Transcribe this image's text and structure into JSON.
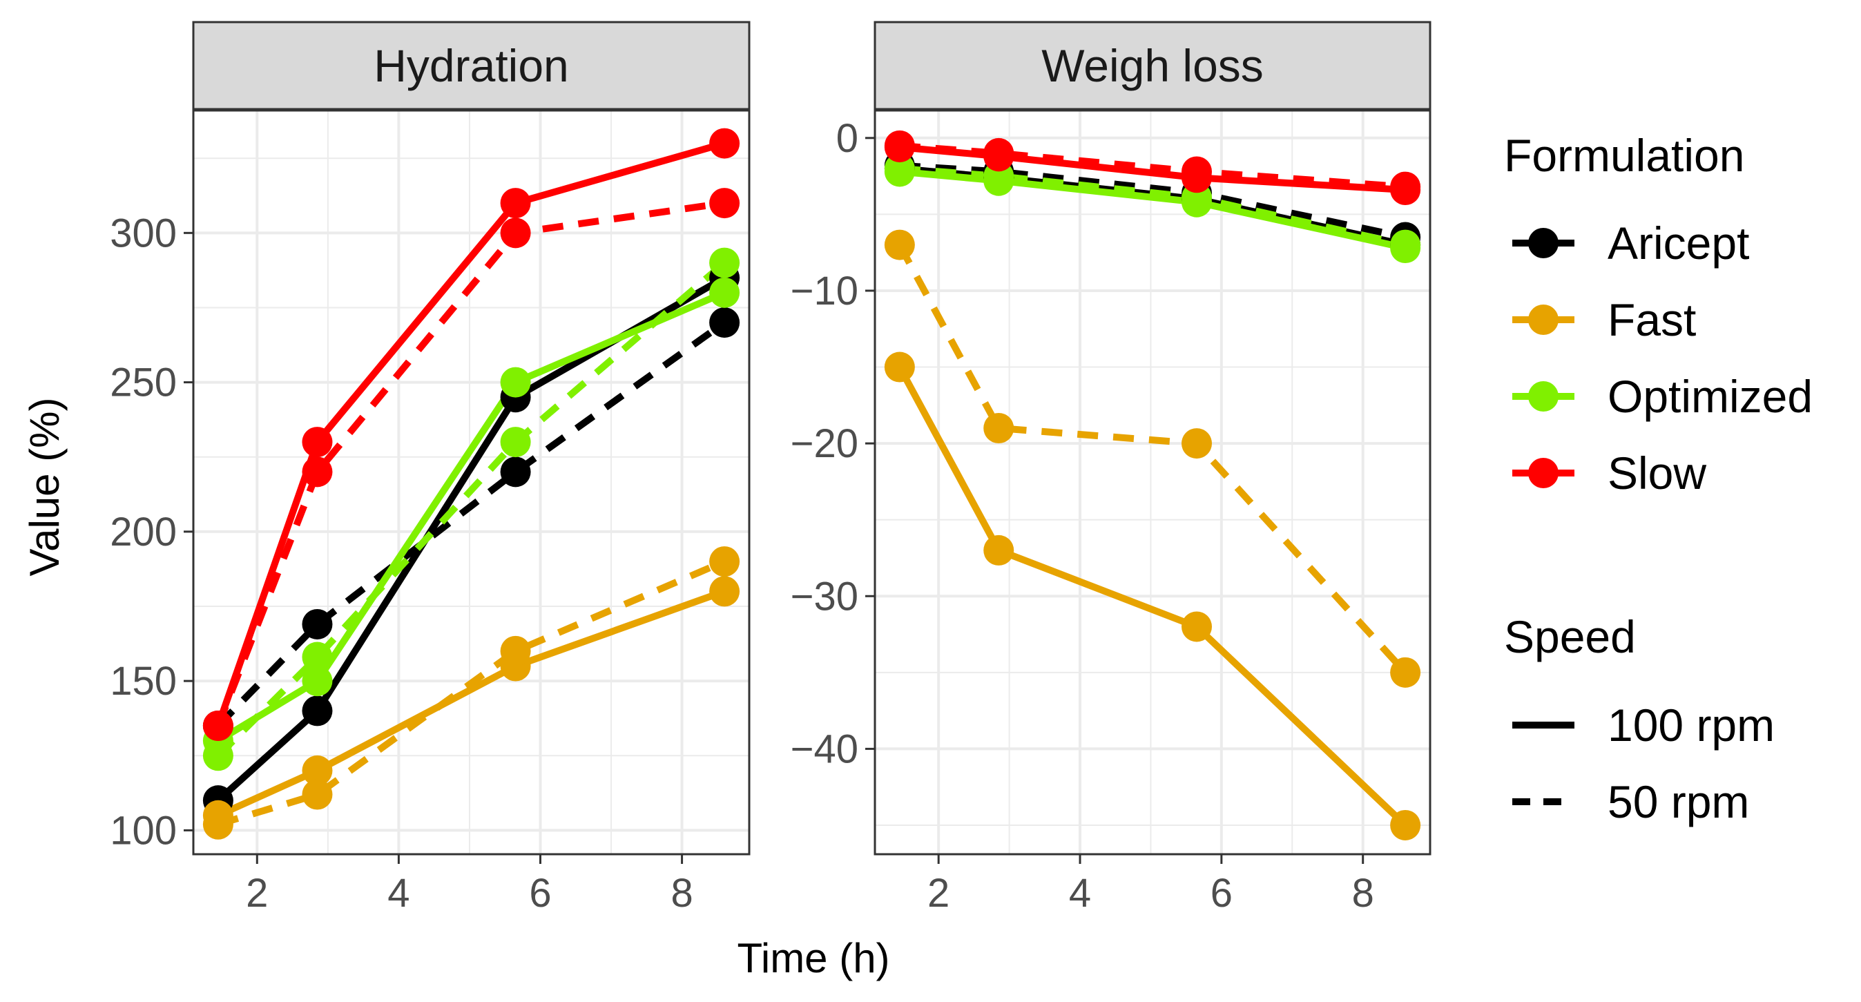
{
  "chart_data": {
    "type": "line",
    "xlabel": "Time (h)",
    "ylabel": "Value (%)",
    "x": [
      1.45,
      2.85,
      5.65,
      8.6
    ],
    "xlim": [
      1.1,
      8.95
    ],
    "xticks": [
      2,
      4,
      6,
      8
    ],
    "colors": {
      "Aricept": "#000000",
      "Fast": "#E7A300",
      "Optimized": "#80F000",
      "Slow": "#FF0000",
      "strip_bg": "#D9D9D9",
      "grid": "#EBEBEB"
    },
    "panels": [
      {
        "title": "Hydration",
        "ylim": [
          92,
          341
        ],
        "yticks": [
          100,
          150,
          200,
          250,
          300
        ],
        "series": [
          {
            "formulation": "Aricept",
            "speed": "100 rpm",
            "values": [
              110,
              140,
              245,
              285
            ]
          },
          {
            "formulation": "Aricept",
            "speed": "50 rpm",
            "values": [
              135,
              169,
              220,
              270
            ]
          },
          {
            "formulation": "Fast",
            "speed": "100 rpm",
            "values": [
              105,
              120,
              155,
              180
            ]
          },
          {
            "formulation": "Fast",
            "speed": "50 rpm",
            "values": [
              102,
              112,
              160,
              190
            ]
          },
          {
            "formulation": "Optimized",
            "speed": "100 rpm",
            "values": [
              130,
              150,
              250,
              280
            ]
          },
          {
            "formulation": "Optimized",
            "speed": "50 rpm",
            "values": [
              125,
              158,
              230,
              290
            ]
          },
          {
            "formulation": "Slow",
            "speed": "100 rpm",
            "values": [
              135,
              230,
              310,
              330
            ]
          },
          {
            "formulation": "Slow",
            "speed": "50 rpm",
            "values": [
              135,
              220,
              300,
              310
            ]
          }
        ]
      },
      {
        "title": "Weigh loss",
        "ylim": [
          -46.9,
          1.8
        ],
        "yticks": [
          0,
          -10,
          -20,
          -30,
          -40
        ],
        "series": [
          {
            "formulation": "Aricept",
            "speed": "100 rpm",
            "values": [
              -2,
              -2.6,
              -4,
              -7
            ]
          },
          {
            "formulation": "Aricept",
            "speed": "50 rpm",
            "values": [
              -1.8,
              -2.2,
              -3.6,
              -6.5
            ]
          },
          {
            "formulation": "Fast",
            "speed": "100 rpm",
            "values": [
              -15,
              -27,
              -32,
              -45
            ]
          },
          {
            "formulation": "Fast",
            "speed": "50 rpm",
            "values": [
              -7,
              -19,
              -20,
              -35
            ]
          },
          {
            "formulation": "Optimized",
            "speed": "100 rpm",
            "values": [
              -2.2,
              -2.8,
              -4.2,
              -7.2
            ]
          },
          {
            "formulation": "Optimized",
            "speed": "50 rpm",
            "values": [
              -2,
              -2.5,
              -3.9,
              -7
            ]
          },
          {
            "formulation": "Slow",
            "speed": "100 rpm",
            "values": [
              -0.6,
              -1.2,
              -2.6,
              -3.4
            ]
          },
          {
            "formulation": "Slow",
            "speed": "50 rpm",
            "values": [
              -0.5,
              -1,
              -2.2,
              -3.2
            ]
          }
        ]
      }
    ],
    "legend": {
      "position": "right",
      "formulation_title": "Formulation",
      "formulations": [
        "Aricept",
        "Fast",
        "Optimized",
        "Slow"
      ],
      "speed_title": "Speed",
      "speeds": [
        "100 rpm",
        "50 rpm"
      ]
    }
  }
}
